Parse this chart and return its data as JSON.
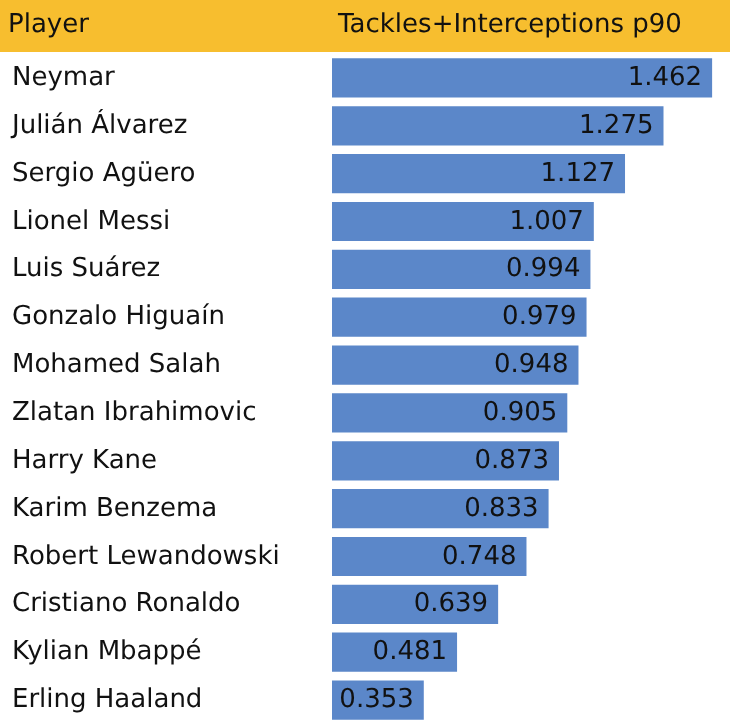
{
  "chart_data": {
    "type": "bar",
    "orientation": "horizontal",
    "ylabel": "Player",
    "xlabel": "Tackles+Interceptions p90",
    "categories": [
      "Neymar",
      "Julián Álvarez",
      "Sergio Agüero",
      "Lionel Messi",
      "Luis Suárez",
      "Gonzalo Higuaín",
      "Mohamed Salah",
      "Zlatan Ibrahimovic",
      "Harry Kane",
      "Karim Benzema",
      "Robert Lewandowski",
      "Cristiano Ronaldo",
      "Kylian Mbappé",
      "Erling Haaland"
    ],
    "values": [
      1.462,
      1.275,
      1.127,
      1.007,
      0.994,
      0.979,
      0.948,
      0.905,
      0.873,
      0.833,
      0.748,
      0.639,
      0.481,
      0.353
    ],
    "color": "#5b87c9",
    "data_labels": true
  }
}
